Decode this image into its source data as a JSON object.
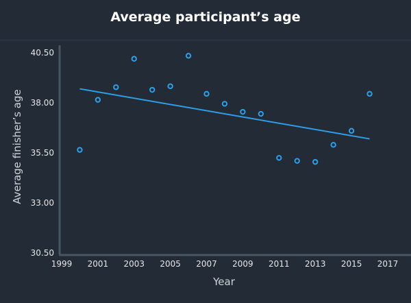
{
  "chart_data": {
    "type": "scatter",
    "title": "Average participant’s age",
    "xlabel": "Year",
    "ylabel": "Average finisher’s age",
    "xlim": [
      1999,
      2017
    ],
    "ylim": [
      30.5,
      40.5
    ],
    "x_ticks": [
      "1999",
      "2001",
      "2003",
      "2005",
      "2007",
      "2009",
      "2011",
      "2013",
      "2015",
      "2017"
    ],
    "y_ticks": [
      "40.50",
      "38.00",
      "35.50",
      "33.00",
      "30.50"
    ],
    "grid": false,
    "legend": "none",
    "series": [
      {
        "type": "scatter",
        "x": [
          2000,
          2001,
          2002,
          2003,
          2004,
          2005,
          2006,
          2007,
          2008,
          2009,
          2010,
          2011,
          2012,
          2013,
          2014,
          2015,
          2016
        ],
        "y": [
          35.65,
          38.15,
          38.78,
          40.2,
          38.65,
          38.83,
          40.35,
          38.45,
          37.95,
          37.55,
          37.45,
          35.25,
          35.1,
          35.05,
          35.9,
          36.6,
          38.45
        ]
      },
      {
        "type": "line",
        "x": [
          2000,
          2016
        ],
        "y": [
          38.7,
          36.2
        ]
      }
    ],
    "colors": {
      "points": "#2e9ee8",
      "trend": "#2e9ee8",
      "axis": "#4a5562"
    }
  }
}
